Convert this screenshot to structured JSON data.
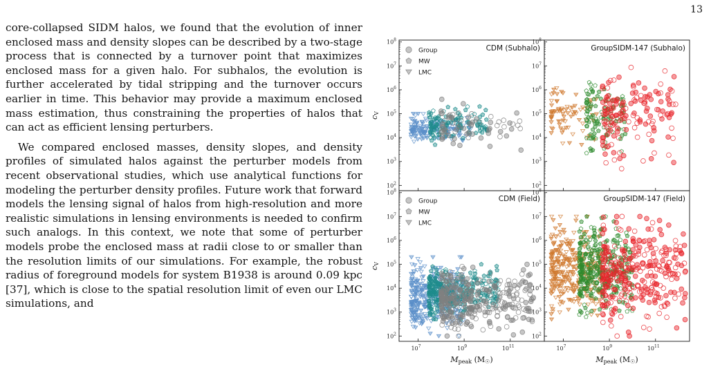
{
  "page_number": "13",
  "paragraphs": [
    "core-collapsed SIDM halos, we found that the evolution of inner enclosed mass and density slopes can be described by a two-stage process that is connected by a turnover point that maximizes enclosed mass for a given halo. For subhalos, the evolution is further accelerated by tidal stripping and the turnover occurs earlier in time. This behavior may provide a maximum enclosed mass estimation, thus constraining the properties of halos that can act as efficient lensing perturbers.",
    "We compared enclosed masses, density slopes, and density profiles of simulated halos against the perturber models from recent observational studies, which use analytical functions for modeling the perturber density profiles. Future work that forward models the lensing signal of halos from high-resolution and more realistic simulations in lensing environments is needed to confirm such analogs. In this context, we note that some of perturber models probe the enclosed mass at radii close to or smaller than the resolution limits of our simulations. For example, the robust radius of foreground models for system B1938 is around 0.09 kpc [37], which is close to the spatial resolution limit of even our LMC simulations, and"
  ],
  "figure": {
    "legend": {
      "group": "Group",
      "mw": "MW",
      "lmc": "LMC"
    },
    "ylabel": "cV",
    "ylabel_sub": "V",
    "xlabel_base": "M",
    "xlabel_sub": "peak",
    "xlabel_unit": " (M",
    "xlabel_unit_end": ")",
    "panels": [
      {
        "id": "cdm-subhalo",
        "title": "CDM (Subhalo)",
        "model": "cdm",
        "kind": "sub",
        "show_legend": true,
        "show_ylabel": true,
        "show_xlabel": false
      },
      {
        "id": "sidm-subhalo",
        "title": "GroupSIDM-147 (Subhalo)",
        "model": "sidm",
        "kind": "sub",
        "show_legend": false,
        "show_ylabel": false,
        "show_xlabel": false
      },
      {
        "id": "cdm-field",
        "title": "CDM (Field)",
        "model": "cdm",
        "kind": "field",
        "show_legend": true,
        "show_ylabel": true,
        "show_xlabel": true
      },
      {
        "id": "sidm-field",
        "title": "GroupSIDM-147 (Field)",
        "model": "sidm",
        "kind": "field",
        "show_legend": false,
        "show_ylabel": false,
        "show_xlabel": true
      }
    ],
    "y_ticks": [
      "10^2",
      "10^3",
      "10^4",
      "10^5",
      "10^6",
      "10^7",
      "10^8"
    ],
    "x_ticks": [
      "10^7",
      "10^9",
      "10^11"
    ]
  },
  "chart_data": {
    "type": "scatter",
    "xlabel": "M_peak (M☉)",
    "ylabel": "c_V",
    "xscale": "log",
    "yscale": "log",
    "xlim": [
      1500000.0,
      3000000000000.0
    ],
    "ylim": [
      60,
      120000000.0
    ],
    "panels": [
      {
        "title": "CDM (Subhalo)",
        "series": [
          {
            "name": "Group",
            "marker": "circle",
            "color": "#808080",
            "x_range": [
              100000000.0,
              300000000000.0
            ],
            "y_range": [
              3000.0,
              400000.0
            ],
            "approx_count": 70
          },
          {
            "name": "MW",
            "marker": "pentagon",
            "color": "#1f8c8c",
            "x_range": [
              30000000.0,
              10000000000.0
            ],
            "y_range": [
              5000.0,
              200000.0
            ],
            "approx_count": 120
          },
          {
            "name": "LMC",
            "marker": "triangle-down",
            "color": "#5b8fc9",
            "x_range": [
              5000000.0,
              2000000000.0
            ],
            "y_range": [
              5000.0,
              100000.0
            ],
            "approx_count": 150
          }
        ]
      },
      {
        "title": "GroupSIDM-147 (Subhalo)",
        "series": [
          {
            "name": "Group",
            "marker": "circle",
            "color": "#e8242a",
            "x_range": [
              500000000.0,
              1000000000000.0
            ],
            "y_range": [
              500.0,
              10000000.0
            ],
            "approx_count": 150
          },
          {
            "name": "MW",
            "marker": "pentagon",
            "color": "#2e8b2e",
            "x_range": [
              100000000.0,
              5000000000.0
            ],
            "y_range": [
              2000.0,
              4000000.0
            ],
            "approx_count": 110
          },
          {
            "name": "LMC",
            "marker": "triangle-down",
            "color": "#d07a30",
            "x_range": [
              3000000.0,
              300000000.0
            ],
            "y_range": [
              5000.0,
              2000000.0
            ],
            "approx_count": 80
          }
        ]
      },
      {
        "title": "CDM (Field)",
        "series": [
          {
            "name": "Group",
            "marker": "circle",
            "color": "#808080",
            "x_range": [
              100000000.0,
              1000000000000.0
            ],
            "y_range": [
              100.0,
              100000.0
            ],
            "approx_count": 350
          },
          {
            "name": "MW",
            "marker": "pentagon",
            "color": "#1f8c8c",
            "x_range": [
              30000000.0,
              30000000000.0
            ],
            "y_range": [
              500.0,
              100000.0
            ],
            "approx_count": 400
          },
          {
            "name": "LMC",
            "marker": "triangle-down",
            "color": "#5b8fc9",
            "x_range": [
              5000000.0,
              1000000000.0
            ],
            "y_range": [
              100.0,
              200000.0
            ],
            "approx_count": 450
          }
        ]
      },
      {
        "title": "GroupSIDM-147 (Field)",
        "series": [
          {
            "name": "Group",
            "marker": "circle",
            "color": "#e8242a",
            "x_range": [
              500000000.0,
              2000000000000.0
            ],
            "y_range": [
              100.0,
              10000000.0
            ],
            "approx_count": 500
          },
          {
            "name": "MW",
            "marker": "pentagon",
            "color": "#2e8b2e",
            "x_range": [
              50000000.0,
              10000000000.0
            ],
            "y_range": [
              500.0,
              10000000.0
            ],
            "approx_count": 450
          },
          {
            "name": "LMC",
            "marker": "triangle-down",
            "color": "#d07a30",
            "x_range": [
              3000000.0,
              500000000.0
            ],
            "y_range": [
              500.0,
              10000000.0
            ],
            "approx_count": 450
          }
        ]
      }
    ],
    "legend_position": "top-left"
  }
}
